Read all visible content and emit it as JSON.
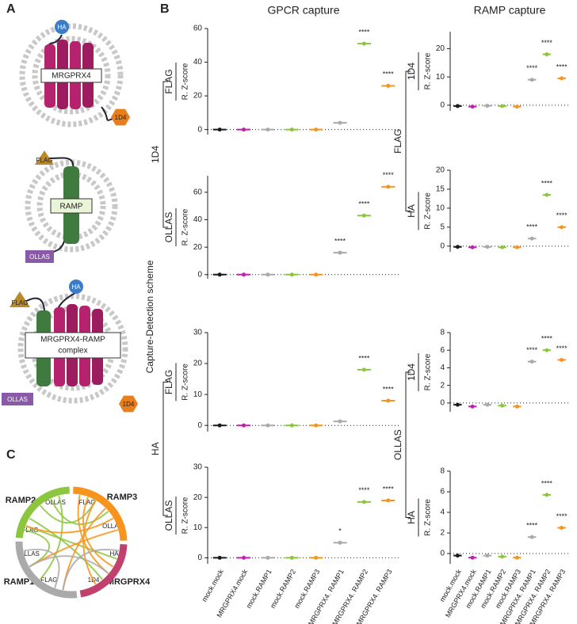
{
  "panels": {
    "a": "A",
    "b": "B",
    "c": "C"
  },
  "diagrams": {
    "gpcr": "MRGPRX4",
    "gpcr_tag_n": "HA",
    "gpcr_tag_c": "1D4",
    "ramp": "RAMP",
    "ramp_tag_n": "FLAG",
    "ramp_tag_c": "OLLAS",
    "complex_lines": [
      "MRGPRX4-RAMP",
      "complex"
    ],
    "complex_tags": [
      "FLAG",
      "HA",
      "OLLAS",
      "1D4"
    ]
  },
  "chord": {
    "labels": [
      "RAMP2",
      "OLLAS",
      "FLAG",
      "RAMP3",
      "FLAG",
      "OLLAS",
      "HA",
      "1D4",
      "MRGPRX4",
      "RAMP1",
      "FLAG",
      "OLLAS"
    ]
  },
  "columns": [
    "GPCR capture",
    "RAMP capture"
  ],
  "scheme_label": "Capture-Detection scheme",
  "captures": [
    [
      "1D4",
      "HA"
    ],
    [
      "FLAG",
      "OLLAS"
    ]
  ],
  "palette": [
    "#1a1a1a",
    "#c21fb0",
    "#aaaaaa",
    "#8cc63f",
    "#f7941d",
    "#aaaaaa",
    "#8cc63f",
    "#f7941d"
  ],
  "chart_data": [
    {
      "type": "dot",
      "detection": "FLAG",
      "ylabel": "R. Z-score",
      "ylim": [
        -3,
        60
      ],
      "yticks": [
        0,
        20,
        40,
        60
      ],
      "values": [
        0,
        0,
        0,
        0,
        0,
        4,
        51,
        26
      ],
      "annotations": [
        null,
        null,
        null,
        null,
        null,
        null,
        "****",
        "****"
      ]
    },
    {
      "type": "dot",
      "detection": "OLLAS",
      "ylabel": "R. Z-score",
      "ylim": [
        -3,
        72
      ],
      "yticks": [
        0,
        20,
        40,
        60
      ],
      "values": [
        0,
        0,
        0,
        0,
        0,
        16,
        43,
        64
      ],
      "annotations": [
        null,
        null,
        null,
        null,
        null,
        "****",
        "****",
        "****"
      ]
    },
    {
      "type": "dot",
      "detection": "FLAG",
      "ylabel": "R. Z-score",
      "ylim": [
        -2,
        30
      ],
      "yticks": [
        0,
        10,
        20,
        30
      ],
      "values": [
        0,
        0,
        0,
        0,
        0,
        1.3,
        18,
        8
      ],
      "annotations": [
        null,
        null,
        null,
        null,
        null,
        null,
        "****",
        "****"
      ]
    },
    {
      "type": "dot",
      "detection": "OLLAS",
      "ylabel": "R. Z-score",
      "ylim": [
        -2,
        30
      ],
      "yticks": [
        0,
        10,
        20,
        30
      ],
      "values": [
        0,
        0,
        0,
        0,
        0,
        5,
        18.5,
        19
      ],
      "annotations": [
        null,
        null,
        null,
        null,
        null,
        "*",
        "****",
        "****"
      ],
      "categories": [
        "mock.mock",
        "MRGPRX4.mock",
        "mock.RAMP1",
        "mock.RAMP2",
        "mock.RAMP3",
        "MRGPRX4. RAMP1",
        "MRGPRX4. RAMP2",
        "MRGPRX4. RAMP3"
      ]
    },
    {
      "type": "dot",
      "detection": "1D4",
      "ylabel": "R. Z-score",
      "ylim": [
        -2,
        26
      ],
      "yticks": [
        0,
        10,
        20
      ],
      "values": [
        -0.3,
        -0.5,
        -0.2,
        -0.3,
        -0.5,
        9,
        18,
        9.5
      ],
      "annotations": [
        null,
        null,
        null,
        null,
        null,
        "****",
        "****",
        "****"
      ]
    },
    {
      "type": "dot",
      "detection": "HA",
      "ylabel": "R. Z-score",
      "ylim": [
        -1.5,
        20
      ],
      "yticks": [
        0,
        5,
        10,
        15,
        20
      ],
      "values": [
        -0.2,
        -0.3,
        -0.2,
        -0.3,
        -0.3,
        2,
        13.5,
        5
      ],
      "annotations": [
        null,
        null,
        null,
        null,
        null,
        "****",
        "****",
        "****"
      ]
    },
    {
      "type": "dot",
      "detection": "1D4",
      "ylabel": "R. Z-score",
      "ylim": [
        -1,
        8
      ],
      "yticks": [
        0,
        2,
        4,
        6,
        8
      ],
      "values": [
        -0.2,
        -0.4,
        -0.2,
        -0.3,
        -0.4,
        4.7,
        6,
        4.9
      ],
      "annotations": [
        null,
        null,
        null,
        null,
        null,
        "****",
        "****",
        "****"
      ]
    },
    {
      "type": "dot",
      "detection": "HA",
      "ylabel": "R. Z-score",
      "ylim": [
        -1,
        8
      ],
      "yticks": [
        0,
        2,
        4,
        6,
        8
      ],
      "values": [
        -0.2,
        -0.4,
        -0.2,
        -0.3,
        -0.4,
        1.6,
        5.7,
        2.5
      ],
      "annotations": [
        null,
        null,
        null,
        null,
        null,
        "****",
        "****",
        "****"
      ],
      "categories": [
        "mock.mock",
        "MRGPRX4.mock",
        "mock.RAMP1",
        "mock.RAMP2",
        "mock.RAMP3",
        "MRGPRX4. RAMP1",
        "MRGPRX4. RAMP2",
        "MRGPRX4. RAMP3"
      ]
    }
  ]
}
